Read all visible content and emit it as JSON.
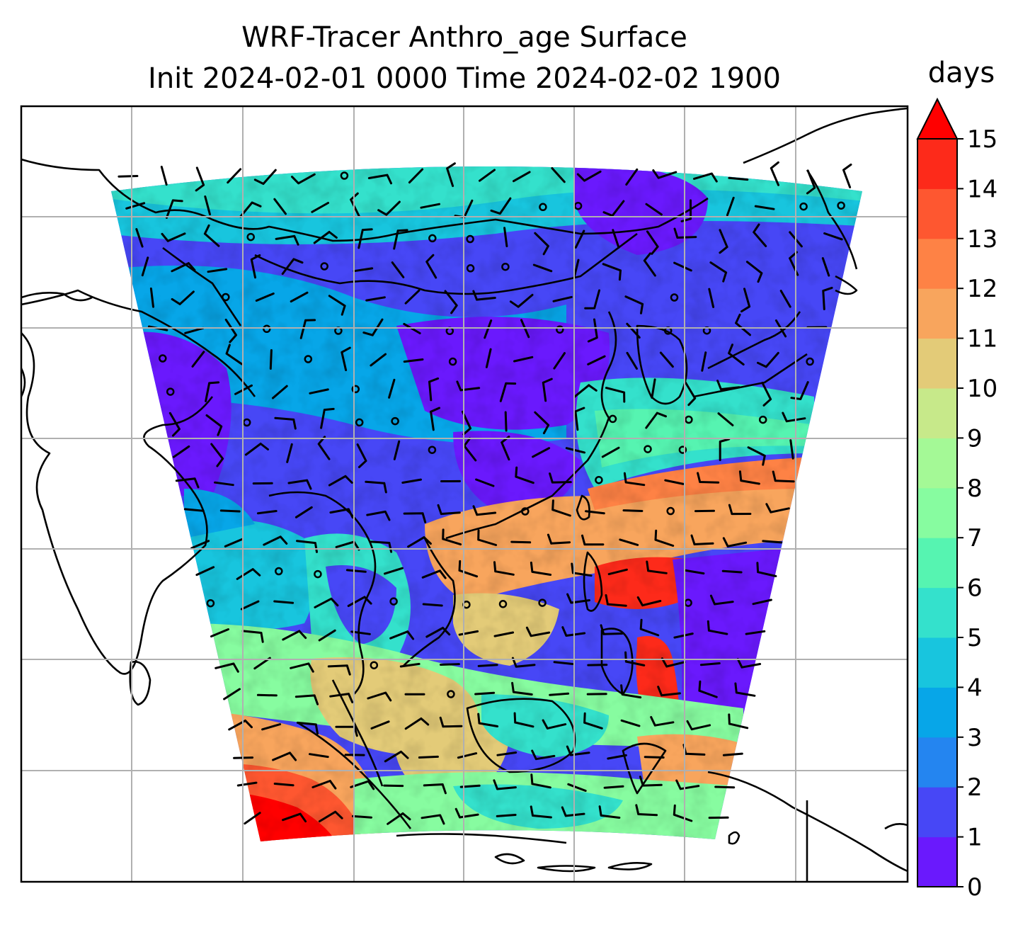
{
  "title_line1": "WRF-Tracer Anthro_age Surface",
  "title_line2": "Init 2024-02-01 0000 Time 2024-02-02 1900",
  "colorbar": {
    "label": "days",
    "ticks": [
      "0",
      "1",
      "2",
      "3",
      "4",
      "5",
      "6",
      "7",
      "8",
      "9",
      "10",
      "11",
      "12",
      "13",
      "14",
      "15"
    ],
    "colors": [
      "#6a19fd",
      "#4747f6",
      "#2485f0",
      "#07a6e8",
      "#18c5de",
      "#34e1cc",
      "#56f4b1",
      "#87fca0",
      "#a4f996",
      "#c7e98a",
      "#e3cb78",
      "#f8a55d",
      "#fe8245",
      "#fe5730",
      "#fd2a1a"
    ],
    "extend_color": "#ff0000"
  },
  "chart_data": {
    "type": "heatmap",
    "variable": "Anthro_age Surface",
    "units": "days",
    "colorbar_range": [
      0,
      15
    ],
    "colorbar_extend": "max",
    "levels": [
      0,
      1,
      2,
      3,
      4,
      5,
      6,
      7,
      8,
      9,
      10,
      11,
      12,
      13,
      14,
      15
    ],
    "grid": true,
    "overlay": "wind barbs"
  }
}
